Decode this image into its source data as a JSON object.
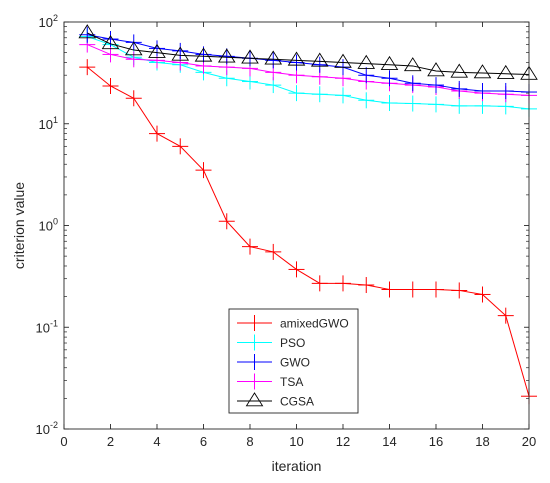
{
  "chart_data": {
    "type": "line",
    "xlabel": "iteration",
    "ylabel": "criterion value",
    "yscale": "log",
    "xlim": [
      0,
      20
    ],
    "ylim": [
      0.01,
      100
    ],
    "grid": false,
    "legend_position": "bottom-center",
    "x_ticks": [
      {
        "value": 0,
        "label": "0"
      },
      {
        "value": 2,
        "label": "2"
      },
      {
        "value": 4,
        "label": "4"
      },
      {
        "value": 6,
        "label": "6"
      },
      {
        "value": 8,
        "label": "8"
      },
      {
        "value": 10,
        "label": "10"
      },
      {
        "value": 12,
        "label": "12"
      },
      {
        "value": 14,
        "label": "14"
      },
      {
        "value": 16,
        "label": "16"
      },
      {
        "value": 18,
        "label": "18"
      },
      {
        "value": 20,
        "label": "20"
      }
    ],
    "y_ticks": [
      {
        "value": 0.01,
        "base": "10",
        "exp": "-2"
      },
      {
        "value": 0.1,
        "base": "10",
        "exp": "-1"
      },
      {
        "value": 1,
        "base": "10",
        "exp": "0"
      },
      {
        "value": 10,
        "base": "10",
        "exp": "1"
      },
      {
        "value": 100,
        "base": "10",
        "exp": "2"
      }
    ],
    "x": [
      1,
      2,
      3,
      4,
      5,
      6,
      7,
      8,
      9,
      10,
      11,
      12,
      13,
      14,
      15,
      16,
      17,
      18,
      19,
      20
    ],
    "series": [
      {
        "name": "amixedGWO",
        "color": "#ff0000",
        "marker": "plus",
        "values": [
          36,
          23.5,
          17.8,
          8,
          6,
          3.5,
          1.1,
          0.62,
          0.55,
          0.37,
          0.27,
          0.27,
          0.26,
          0.235,
          0.235,
          0.235,
          0.23,
          0.21,
          0.13,
          0.021
        ]
      },
      {
        "name": "PSO",
        "color": "#00ffff",
        "marker": "plus",
        "values": [
          72,
          60,
          45,
          40,
          38,
          32,
          28,
          26,
          24,
          20,
          19.5,
          19,
          17,
          16,
          15.8,
          15.5,
          15,
          15,
          14.8,
          14
        ]
      },
      {
        "name": "GWO",
        "color": "#0000ff",
        "marker": "plus",
        "values": [
          75,
          68,
          63,
          55,
          52,
          48,
          46,
          44,
          42,
          40,
          38,
          36,
          30,
          28,
          25,
          24,
          22,
          21,
          21,
          20.5
        ]
      },
      {
        "name": "TSA",
        "color": "#ff00ff",
        "marker": "plus",
        "values": [
          60,
          48,
          43,
          42,
          40,
          37,
          36,
          35,
          32,
          30,
          29,
          28,
          26,
          25,
          24,
          23,
          21,
          20,
          19.5,
          19
        ]
      },
      {
        "name": "CGSA",
        "color": "#000000",
        "marker": "triangle",
        "values": [
          78,
          61,
          53,
          50,
          47,
          46,
          45,
          44,
          43,
          42,
          41,
          40,
          39,
          38,
          37,
          33,
          32,
          31.5,
          31,
          30.5
        ]
      }
    ]
  }
}
